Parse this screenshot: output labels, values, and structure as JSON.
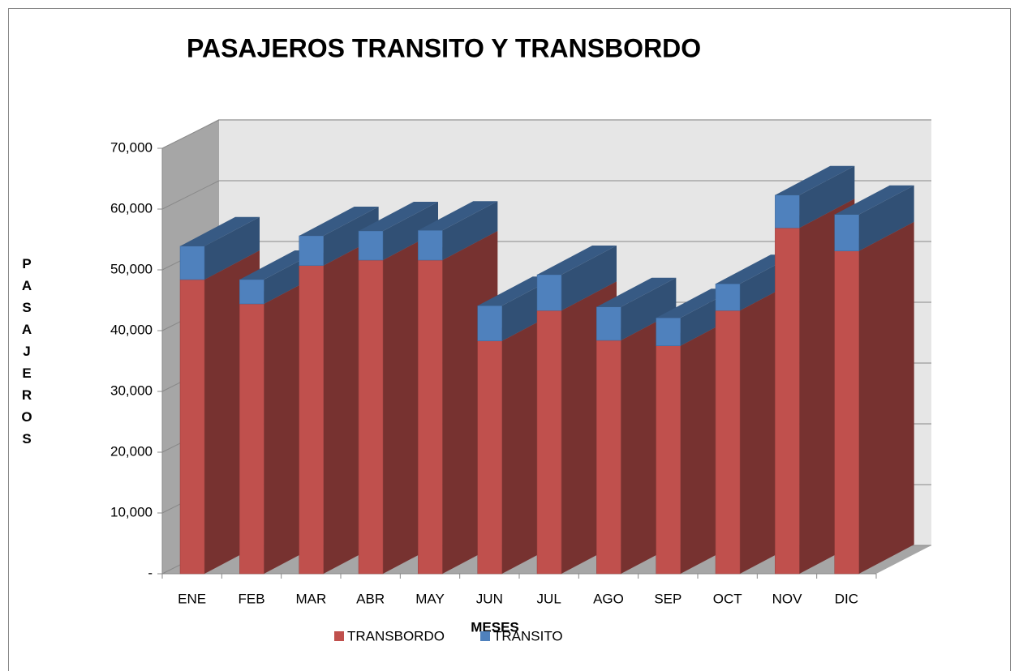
{
  "chart_data": {
    "type": "bar3d_stacked",
    "title": "PASAJEROS TRANSITO Y TRANSBORDO",
    "x_label": "MESES",
    "y_label": "PASAJEROS",
    "categories": [
      "ENE",
      "FEB",
      "MAR",
      "ABR",
      "MAY",
      "JUN",
      "JUL",
      "AGO",
      "SEP",
      "OCT",
      "NOV",
      "DIC"
    ],
    "series": [
      {
        "name": "TRANSBORDO",
        "color": "#c0504d",
        "values": [
          48400,
          44400,
          50700,
          51600,
          51600,
          38300,
          43300,
          38400,
          37500,
          43300,
          56900,
          53100
        ]
      },
      {
        "name": "TRANSITO",
        "color": "#4f81bd",
        "values": [
          5500,
          4000,
          4900,
          4800,
          4900,
          5800,
          5900,
          5500,
          4600,
          4400,
          5400,
          6000
        ]
      }
    ],
    "ylim": [
      0,
      70000
    ],
    "yticks": [
      {
        "value": 0,
        "label": "-"
      },
      {
        "value": 10000,
        "label": "10,000"
      },
      {
        "value": 20000,
        "label": "20,000"
      },
      {
        "value": 30000,
        "label": "30,000"
      },
      {
        "value": 40000,
        "label": "40,000"
      },
      {
        "value": 50000,
        "label": "50,000"
      },
      {
        "value": 60000,
        "label": "60,000"
      },
      {
        "value": 70000,
        "label": "70,000"
      }
    ],
    "grid": true,
    "legend": "bottom"
  }
}
